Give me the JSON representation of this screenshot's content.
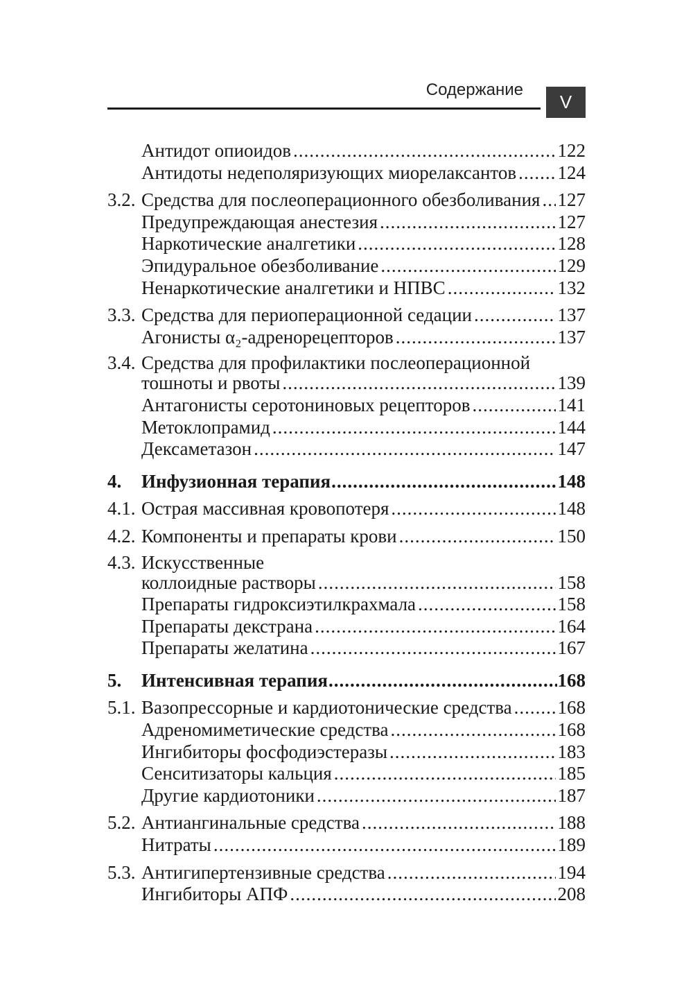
{
  "header": {
    "title": "Содержание",
    "page_label": "V"
  },
  "toc": [
    {
      "items": [
        {
          "num": "",
          "title": "Антидот опиоидов",
          "page": "122"
        },
        {
          "num": "",
          "title": "Антидоты недеполяризующих миорелаксантов",
          "page": "124"
        }
      ]
    },
    {
      "items": [
        {
          "num": "3.2.",
          "title": "Средства для послеоперационного обезболивания",
          "page": "127"
        },
        {
          "num": "",
          "title": "Предупреждающая анестезия",
          "page": "127"
        },
        {
          "num": "",
          "title": "Наркотические аналгетики",
          "page": "128"
        },
        {
          "num": "",
          "title": "Эпидуральное обезболивание",
          "page": "129"
        },
        {
          "num": "",
          "title": "Ненаркотические аналгетики и НПВС",
          "page": "132"
        }
      ]
    },
    {
      "items": [
        {
          "num": "3.3.",
          "title": "Средства для периоперационной седации",
          "page": "137"
        },
        {
          "num": "",
          "title": "Агонисты α₂-адренорецепторов",
          "page": "137"
        }
      ]
    },
    {
      "items": [
        {
          "num": "3.4.",
          "title_first_line": "Средства для профилактики послеоперационной",
          "title": "тошноты и рвоты",
          "page": "139"
        },
        {
          "num": "",
          "title": "Антагонисты серотониновых рецепторов",
          "page": "141"
        },
        {
          "num": "",
          "title": "Метоклопрамид",
          "page": "144"
        },
        {
          "num": "",
          "title": "Дексаметазон",
          "page": "147"
        }
      ]
    },
    {
      "chapter": true,
      "items": [
        {
          "num": "4.",
          "title": "Инфузионная терапия",
          "page": "148"
        }
      ]
    },
    {
      "items": [
        {
          "num": "4.1.",
          "title": "Острая массивная кровопотеря",
          "page": "148"
        }
      ]
    },
    {
      "items": [
        {
          "num": "4.2.",
          "title": "Компоненты и препараты крови",
          "page": "150"
        }
      ]
    },
    {
      "items": [
        {
          "num": "4.3.",
          "title_first_line": "Искусственные",
          "title": "коллоидные растворы",
          "page": "158"
        },
        {
          "num": "",
          "title": "Препараты гидроксиэтилкрахмала",
          "page": "158"
        },
        {
          "num": "",
          "title": "Препараты декстрана",
          "page": "164"
        },
        {
          "num": "",
          "title": "Препараты желатина",
          "page": "167"
        }
      ]
    },
    {
      "chapter": true,
      "items": [
        {
          "num": "5.",
          "title": "Интенсивная терапия",
          "page": "168"
        }
      ]
    },
    {
      "items": [
        {
          "num": "5.1.",
          "title": "Вазопрессорные и кардиотонические средства",
          "page": "168"
        },
        {
          "num": "",
          "title": "Адреномиметические средства",
          "page": "168"
        },
        {
          "num": "",
          "title": "Ингибиторы фосфодиэстеразы",
          "page": "183"
        },
        {
          "num": "",
          "title": "Сенситизаторы кальция",
          "page": "185"
        },
        {
          "num": "",
          "title": "Другие кардиотоники",
          "page": "187"
        }
      ]
    },
    {
      "items": [
        {
          "num": "5.2.",
          "title": "Антиангинальные средства",
          "page": "188"
        },
        {
          "num": "",
          "title": "Нитраты",
          "page": "189"
        }
      ]
    },
    {
      "items": [
        {
          "num": "5.3.",
          "title": "Антигипертензивные средства",
          "page": "194"
        },
        {
          "num": "",
          "title": "Ингибиторы АПФ",
          "page": "208"
        }
      ]
    }
  ]
}
